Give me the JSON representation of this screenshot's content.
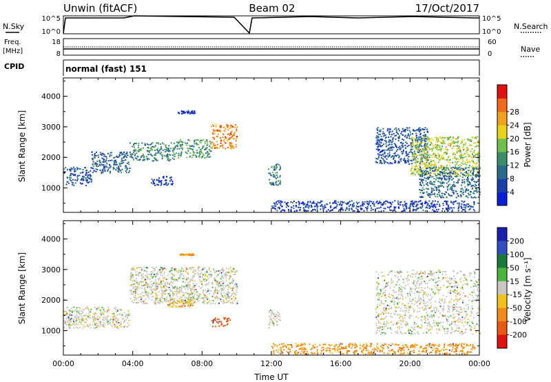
{
  "header": {
    "radar": "Unwin (fitACF)",
    "beam": "Beam 02",
    "date": "17/Oct/2017"
  },
  "top_panels": {
    "nsky_label": "N.Sky",
    "nsky_ticks": [
      "10^5",
      "10^0"
    ],
    "nsearch_label": "N.Search",
    "nsearch_ticks": [
      "10^5",
      "10^0"
    ],
    "freq_label_1": "Freq.",
    "freq_label_2": "[MHz]",
    "freq_ticks": [
      "18",
      "8"
    ],
    "nave_label": "Nave",
    "nave_ticks": [
      "60",
      "0"
    ],
    "cpid_label": "CPID",
    "cpid_value": "normal (fast) 151"
  },
  "colors": {
    "power": [
      "#0a1fd9",
      "#1a3fa8",
      "#2b6a8c",
      "#3c8f6a",
      "#6fbf4a",
      "#e8d21a",
      "#f0a21c",
      "#f06a1a",
      "#e01212"
    ],
    "velocity": [
      "#1a1fae",
      "#2f4fc0",
      "#1a7a3a",
      "#49b53a",
      "#c8c8c0",
      "#f0c21a",
      "#f08a1a",
      "#e85a12",
      "#e01212"
    ]
  },
  "chart_data": [
    {
      "type": "heatmap",
      "ylabel": "Slant Range [km]",
      "xlabel": "",
      "x_ticks": [
        "00:00",
        "04:00",
        "08:00",
        "12:00",
        "16:00",
        "20:00",
        "00:00"
      ],
      "y_ticks": [
        "1000",
        "2000",
        "3000",
        "4000"
      ],
      "ylim": [
        200,
        4600
      ],
      "colorbar_label": "Power [dB]",
      "colorbar_ticks": [
        "4",
        "8",
        "12",
        "16",
        "20",
        "24",
        "28"
      ],
      "x_unit": "hours UT",
      "echo_regions": [
        {
          "x": [
            0.0,
            1.6
          ],
          "y": [
            1100,
            1700
          ],
          "value": 8
        },
        {
          "x": [
            1.6,
            3.8
          ],
          "y": [
            1500,
            2200
          ],
          "value": 9
        },
        {
          "x": [
            3.8,
            6.5
          ],
          "y": [
            1900,
            2500
          ],
          "value": 12
        },
        {
          "x": [
            6.5,
            8.5
          ],
          "y": [
            2000,
            2600
          ],
          "value": 14
        },
        {
          "x": [
            8.5,
            10.0
          ],
          "y": [
            2300,
            3100
          ],
          "value": 24
        },
        {
          "x": [
            6.5,
            7.6
          ],
          "y": [
            3450,
            3550
          ],
          "value": 6
        },
        {
          "x": [
            5.0,
            6.3
          ],
          "y": [
            1100,
            1400
          ],
          "value": 6
        },
        {
          "x": [
            11.8,
            12.5
          ],
          "y": [
            1100,
            1800
          ],
          "value": 12
        },
        {
          "x": [
            12.0,
            23.7
          ],
          "y": [
            250,
            600
          ],
          "value": 6
        },
        {
          "x": [
            18.0,
            21.0
          ],
          "y": [
            1800,
            3000
          ],
          "value": 8
        },
        {
          "x": [
            20.0,
            24.0
          ],
          "y": [
            1400,
            2700
          ],
          "value": 18
        },
        {
          "x": [
            20.5,
            24.0
          ],
          "y": [
            700,
            1700
          ],
          "value": 10
        }
      ]
    },
    {
      "type": "heatmap",
      "ylabel": "Slant Range [km]",
      "xlabel": "Time UT",
      "x_ticks": [
        "00:00",
        "04:00",
        "08:00",
        "12:00",
        "16:00",
        "20:00",
        "00:00"
      ],
      "y_ticks": [
        "1000",
        "2000",
        "3000",
        "4000"
      ],
      "ylim": [
        200,
        4600
      ],
      "colorbar_label": "Velocity [m s⁻¹]",
      "colorbar_ticks": [
        "200",
        "100",
        "50",
        "15",
        "-15",
        "-50",
        "-100",
        "-200"
      ],
      "x_unit": "hours UT",
      "echo_regions": [
        {
          "x": [
            0.0,
            3.8
          ],
          "y": [
            1100,
            1800
          ],
          "value": 0
        },
        {
          "x": [
            3.8,
            10.0
          ],
          "y": [
            1900,
            3100
          ],
          "value": 0
        },
        {
          "x": [
            6.0,
            7.5
          ],
          "y": [
            1800,
            2100
          ],
          "value": -40
        },
        {
          "x": [
            8.5,
            9.6
          ],
          "y": [
            1150,
            1450
          ],
          "value": -150
        },
        {
          "x": [
            6.7,
            7.5
          ],
          "y": [
            3480,
            3540
          ],
          "value": -60
        },
        {
          "x": [
            11.8,
            12.5
          ],
          "y": [
            1100,
            1700
          ],
          "value": 0
        },
        {
          "x": [
            12.0,
            23.7
          ],
          "y": [
            250,
            600
          ],
          "value": -60
        },
        {
          "x": [
            18.0,
            24.0
          ],
          "y": [
            900,
            3000
          ],
          "value": 0
        }
      ]
    }
  ]
}
